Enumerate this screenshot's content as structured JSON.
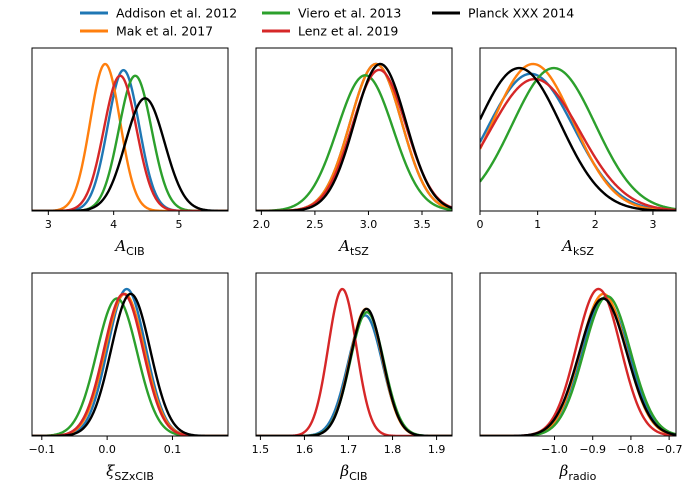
{
  "legend": {
    "placement": "top-center",
    "entries": [
      {
        "label": "Addison et al. 2012",
        "color": "#1f77b4"
      },
      {
        "label": "Mak et al. 2017",
        "color": "#ff7f0e"
      },
      {
        "label": "Viero et al. 2013",
        "color": "#2ca02c"
      },
      {
        "label": "Lenz et al. 2019",
        "color": "#d62728"
      },
      {
        "label": "Planck XXX 2014",
        "color": "#000000"
      }
    ]
  },
  "chart_data": [
    {
      "type": "line",
      "xlabel_main": "A",
      "xlabel_sub": "CIB",
      "xlim": [
        2.75,
        5.75
      ],
      "xticks": [
        {
          "v": 3,
          "label": "3"
        },
        {
          "v": 4,
          "label": "4"
        },
        {
          "v": 5,
          "label": "5"
        }
      ],
      "grid": false,
      "series": [
        {
          "name": "Addison et al. 2012",
          "color": "#1f77b4",
          "mean": 4.15,
          "sigma": 0.24
        },
        {
          "name": "Mak et al. 2017",
          "color": "#ff7f0e",
          "mean": 3.87,
          "sigma": 0.23
        },
        {
          "name": "Viero et al. 2013",
          "color": "#2ca02c",
          "mean": 4.33,
          "sigma": 0.25
        },
        {
          "name": "Lenz et al. 2019",
          "color": "#d62728",
          "mean": 4.1,
          "sigma": 0.25
        },
        {
          "name": "Planck XXX 2014",
          "color": "#000000",
          "mean": 4.48,
          "sigma": 0.3
        }
      ]
    },
    {
      "type": "line",
      "xlabel_main": "A",
      "xlabel_sub": "tSZ",
      "xlim": [
        1.95,
        3.78
      ],
      "xticks": [
        {
          "v": 2.0,
          "label": "2.0"
        },
        {
          "v": 2.5,
          "label": "2.5"
        },
        {
          "v": 3.0,
          "label": "3.0"
        },
        {
          "v": 3.5,
          "label": "3.5"
        }
      ],
      "grid": false,
      "series": [
        {
          "name": "Addison et al. 2012",
          "color": "#1f77b4",
          "mean": 3.07,
          "sigma": 0.24
        },
        {
          "name": "Mak et al. 2017",
          "color": "#ff7f0e",
          "mean": 3.07,
          "sigma": 0.24
        },
        {
          "name": "Viero et al. 2013",
          "color": "#2ca02c",
          "mean": 2.97,
          "sigma": 0.26
        },
        {
          "name": "Lenz et al. 2019",
          "color": "#d62728",
          "mean": 3.1,
          "sigma": 0.25
        },
        {
          "name": "Planck XXX 2014",
          "color": "#000000",
          "mean": 3.11,
          "sigma": 0.24
        }
      ]
    },
    {
      "type": "line",
      "xlabel_main": "A",
      "xlabel_sub": "kSZ",
      "xlim": [
        0,
        3.4
      ],
      "xticks": [
        {
          "v": 0,
          "label": "0"
        },
        {
          "v": 1,
          "label": "1"
        },
        {
          "v": 2,
          "label": "2"
        },
        {
          "v": 3,
          "label": "3"
        }
      ],
      "grid": false,
      "series": [
        {
          "name": "Addison et al. 2012",
          "color": "#1f77b4",
          "mean": 0.88,
          "sigma": 0.75
        },
        {
          "name": "Mak et al. 2017",
          "color": "#ff7f0e",
          "mean": 0.92,
          "sigma": 0.7
        },
        {
          "name": "Viero et al. 2013",
          "color": "#2ca02c",
          "mean": 1.28,
          "sigma": 0.72
        },
        {
          "name": "Lenz et al. 2019",
          "color": "#d62728",
          "mean": 0.95,
          "sigma": 0.78
        },
        {
          "name": "Planck XXX 2014",
          "color": "#000000",
          "mean": 0.68,
          "sigma": 0.72
        }
      ]
    },
    {
      "type": "line",
      "xlabel_main": "ξ",
      "xlabel_sub": "SZxCIB",
      "xlim": [
        -0.115,
        0.185
      ],
      "xticks": [
        {
          "v": -0.1,
          "label": "−0.1"
        },
        {
          "v": 0.0,
          "label": "0.0"
        },
        {
          "v": 0.1,
          "label": "0.1"
        }
      ],
      "grid": false,
      "series": [
        {
          "name": "Addison et al. 2012",
          "color": "#1f77b4",
          "mean": 0.03,
          "sigma": 0.029
        },
        {
          "name": "Mak et al. 2017",
          "color": "#ff7f0e",
          "mean": 0.027,
          "sigma": 0.03
        },
        {
          "name": "Viero et al. 2013",
          "color": "#2ca02c",
          "mean": 0.015,
          "sigma": 0.031
        },
        {
          "name": "Lenz et al. 2019",
          "color": "#d62728",
          "mean": 0.025,
          "sigma": 0.03
        },
        {
          "name": "Planck XXX 2014",
          "color": "#000000",
          "mean": 0.036,
          "sigma": 0.03
        }
      ]
    },
    {
      "type": "line",
      "xlabel_main": "β",
      "xlabel_sub": "CIB",
      "xlim": [
        1.49,
        1.935
      ],
      "xticks": [
        {
          "v": 1.5,
          "label": "1.5"
        },
        {
          "v": 1.6,
          "label": "1.6"
        },
        {
          "v": 1.7,
          "label": "1.7"
        },
        {
          "v": 1.8,
          "label": "1.8"
        },
        {
          "v": 1.9,
          "label": "1.9"
        }
      ],
      "grid": false,
      "series": [
        {
          "name": "Addison et al. 2012",
          "color": "#1f77b4",
          "mean": 1.738,
          "sigma": 0.039
        },
        {
          "name": "Mak et al. 2017",
          "color": "#ff7f0e",
          "mean": 1.74,
          "sigma": 0.037
        },
        {
          "name": "Viero et al. 2013",
          "color": "#2ca02c",
          "mean": 1.742,
          "sigma": 0.038
        },
        {
          "name": "Lenz et al. 2019",
          "color": "#d62728",
          "mean": 1.686,
          "sigma": 0.032
        },
        {
          "name": "Planck XXX 2014",
          "color": "#000000",
          "mean": 1.741,
          "sigma": 0.037
        }
      ]
    },
    {
      "type": "line",
      "xlabel_main": "β",
      "xlabel_sub": "radio",
      "xlim": [
        -1.195,
        -0.682
      ],
      "xticks": [
        {
          "v": -1.0,
          "label": "−1.0"
        },
        {
          "v": -0.9,
          "label": "−0.9"
        },
        {
          "v": -0.8,
          "label": "−0.8"
        },
        {
          "v": -0.7,
          "label": "−0.7"
        }
      ],
      "grid": false,
      "series": [
        {
          "name": "Addison et al. 2012",
          "color": "#1f77b4",
          "mean": -0.868,
          "sigma": 0.062
        },
        {
          "name": "Mak et al. 2017",
          "color": "#ff7f0e",
          "mean": -0.872,
          "sigma": 0.06
        },
        {
          "name": "Viero et al. 2013",
          "color": "#2ca02c",
          "mean": -0.862,
          "sigma": 0.061
        },
        {
          "name": "Lenz et al. 2019",
          "color": "#d62728",
          "mean": -0.885,
          "sigma": 0.058
        },
        {
          "name": "Planck XXX 2014",
          "color": "#000000",
          "mean": -0.873,
          "sigma": 0.062
        }
      ]
    }
  ]
}
